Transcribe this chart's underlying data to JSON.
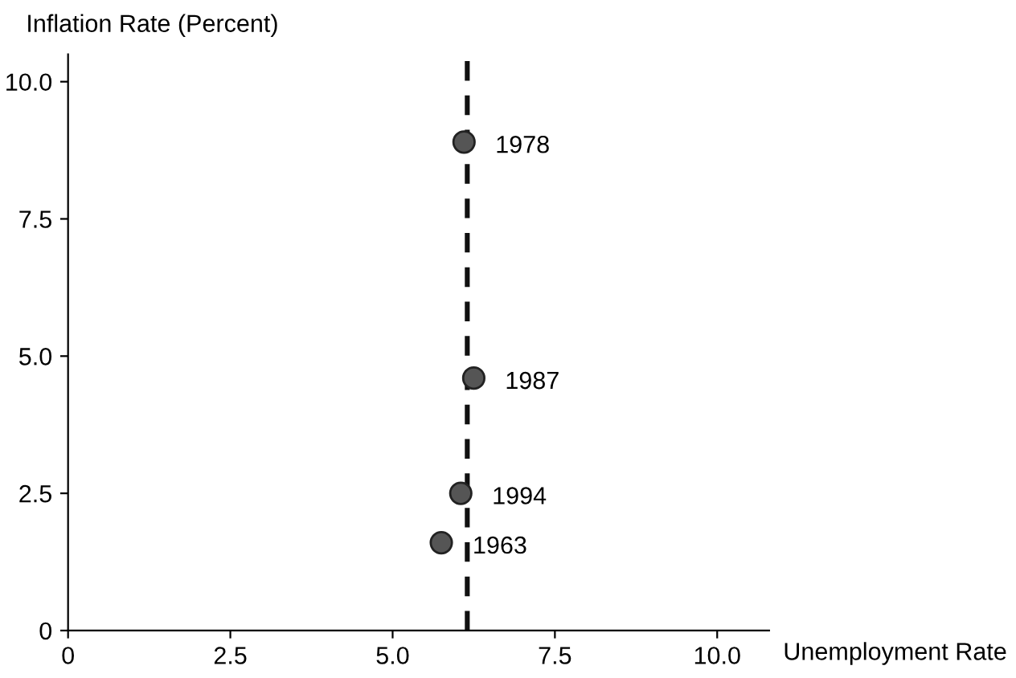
{
  "chart_data": {
    "type": "scatter",
    "xlabel": "Unemployment Rate",
    "ylabel": "Inflation Rate (Percent)",
    "x": [
      6.1,
      6.25,
      6.05,
      5.75
    ],
    "values": [
      8.9,
      4.6,
      2.5,
      1.6
    ],
    "color": "#555555",
    "marker": "circle",
    "grid": false,
    "legend": false,
    "xlim": [
      0,
      10.8
    ],
    "ylim": [
      0,
      10.5
    ],
    "xticks": [
      0,
      2.5,
      {
        "value": 5,
        "label": "5.0"
      },
      7.5,
      {
        "value": 10,
        "label": "10.0"
      }
    ],
    "yticks": [
      0,
      2.5,
      {
        "value": 5,
        "label": "5.0"
      },
      7.5,
      {
        "value": 10,
        "label": "10.0"
      }
    ],
    "ref_lines": [
      {
        "axis": "x",
        "value": 6.15,
        "line_style": "dashed",
        "color": "#111111"
      }
    ],
    "annotations": [
      {
        "text": "1978",
        "x": 6.1,
        "y": 8.9
      },
      {
        "text": "1987",
        "x": 6.25,
        "y": 4.6
      },
      {
        "text": "1994",
        "x": 6.05,
        "y": 2.5
      },
      {
        "text": "1963",
        "x": 5.75,
        "y": 1.6
      }
    ]
  }
}
